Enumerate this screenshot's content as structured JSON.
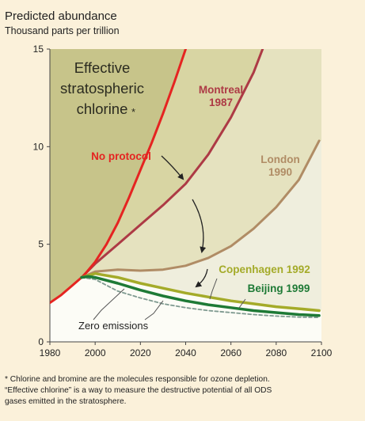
{
  "header": {
    "title": "Predicted abundance",
    "subtitle": "Thousand parts per trillion"
  },
  "footnote": {
    "line1": "* Chlorine and bromine are the molecules responsible for ozone depletion.",
    "line2": "“Effective chlorine” is a way to measure the destructive potential of all ODS",
    "line3": "gases emitted in the stratosphere."
  },
  "colors": {
    "background": "#fbf1da",
    "region_no_protocol": "#c7c48a",
    "region_montreal": "#d8d5a3",
    "region_london": "#e5e2bf",
    "region_copenhagen": "#efeedd",
    "region_below": "#fcfcf6",
    "no_protocol": "#e52421",
    "montreal": "#ad3a45",
    "london": "#b08c65",
    "copenhagen": "#a4ab29",
    "beijing": "#1e7a36",
    "zero_emissions": "#7f9a90",
    "arrow": "#222222"
  },
  "chart_data": {
    "type": "line",
    "xlim": [
      1980,
      2100
    ],
    "ylim": [
      0,
      15
    ],
    "x_ticks": [
      1980,
      2000,
      2020,
      2040,
      2060,
      2080,
      2100
    ],
    "y_ticks": [
      0,
      5,
      10,
      15
    ],
    "annotations": {
      "effective_chlorine": [
        "Effective",
        "stratospheric",
        "chlorine"
      ],
      "effective_chlorine_star": "*",
      "zero_emissions_label": "Zero emissions"
    },
    "series": [
      {
        "key": "no_protocol",
        "label_lines": [
          "No protocol"
        ],
        "x": [
          1980,
          1985,
          1990,
          1995,
          2000,
          2005,
          2010,
          2015,
          2020,
          2025,
          2030,
          2035,
          2040
        ],
        "y": [
          2.0,
          2.4,
          2.9,
          3.4,
          4.1,
          5.0,
          6.1,
          7.4,
          8.8,
          10.2,
          11.7,
          13.3,
          15.0
        ]
      },
      {
        "key": "montreal",
        "label_lines": [
          "Montreal",
          "1987"
        ],
        "x": [
          1994,
          2000,
          2005,
          2010,
          2020,
          2030,
          2040,
          2050,
          2060,
          2070,
          2074
        ],
        "y": [
          3.3,
          4.0,
          4.5,
          5.0,
          6.0,
          7.0,
          8.1,
          9.6,
          11.5,
          13.8,
          15.0
        ]
      },
      {
        "key": "london",
        "label_lines": [
          "London",
          "1990"
        ],
        "x": [
          1994,
          2000,
          2010,
          2020,
          2030,
          2040,
          2050,
          2060,
          2070,
          2080,
          2090,
          2099
        ],
        "y": [
          3.3,
          3.6,
          3.7,
          3.65,
          3.7,
          3.9,
          4.3,
          4.9,
          5.8,
          6.9,
          8.3,
          10.3
        ]
      },
      {
        "key": "copenhagen",
        "label_lines": [
          "Copenhagen 1992"
        ],
        "x": [
          1994,
          2000,
          2010,
          2020,
          2030,
          2040,
          2050,
          2060,
          2070,
          2080,
          2090,
          2099
        ],
        "y": [
          3.3,
          3.5,
          3.3,
          3.0,
          2.75,
          2.5,
          2.3,
          2.1,
          1.95,
          1.8,
          1.7,
          1.6
        ]
      },
      {
        "key": "beijing",
        "label_lines": [
          "Beijing 1999"
        ],
        "x": [
          1994,
          1997,
          2000,
          2010,
          2020,
          2030,
          2040,
          2050,
          2060,
          2070,
          2080,
          2090,
          2099
        ],
        "y": [
          3.3,
          3.35,
          3.3,
          3.0,
          2.65,
          2.35,
          2.1,
          1.9,
          1.75,
          1.6,
          1.5,
          1.4,
          1.35
        ]
      },
      {
        "key": "zero_emissions",
        "label_lines": [],
        "x": [
          1994,
          2000,
          2005,
          2010,
          2020,
          2030,
          2040,
          2050,
          2060,
          2070,
          2080,
          2090,
          2099
        ],
        "y": [
          3.3,
          3.2,
          2.9,
          2.6,
          2.25,
          1.95,
          1.75,
          1.6,
          1.5,
          1.4,
          1.32,
          1.27,
          1.25
        ]
      }
    ]
  }
}
